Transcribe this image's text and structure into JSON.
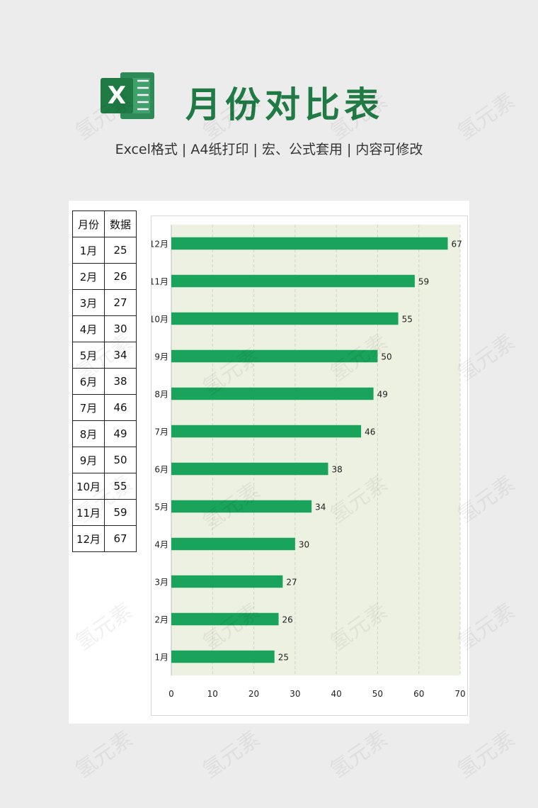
{
  "header": {
    "title": "月份对比表",
    "subtitle": "Excel格式 |  A4纸打印 | 宏、公式套用 | 内容可修改",
    "logo_icon": "excel-logo-icon",
    "accent_color": "#1f7a44"
  },
  "table": {
    "headers": [
      "月份",
      "数据"
    ],
    "rows": [
      [
        "1月",
        "25"
      ],
      [
        "2月",
        "26"
      ],
      [
        "3月",
        "27"
      ],
      [
        "4月",
        "30"
      ],
      [
        "5月",
        "34"
      ],
      [
        "6月",
        "38"
      ],
      [
        "7月",
        "46"
      ],
      [
        "8月",
        "49"
      ],
      [
        "9月",
        "50"
      ],
      [
        "10月",
        "55"
      ],
      [
        "11月",
        "59"
      ],
      [
        "12月",
        "67"
      ]
    ]
  },
  "chart_data": {
    "type": "bar",
    "orientation": "horizontal",
    "categories": [
      "1月",
      "2月",
      "3月",
      "4月",
      "5月",
      "6月",
      "7月",
      "8月",
      "9月",
      "10月",
      "11月",
      "12月"
    ],
    "values": [
      25,
      26,
      27,
      30,
      34,
      38,
      46,
      49,
      50,
      55,
      59,
      67
    ],
    "xlim": [
      0,
      70
    ],
    "xticks": [
      0,
      10,
      20,
      30,
      40,
      50,
      60,
      70
    ],
    "bar_color": "#1aa35a",
    "plot_background": "#edf1e2",
    "grid": true,
    "data_labels": true
  },
  "watermark": "氢元素"
}
